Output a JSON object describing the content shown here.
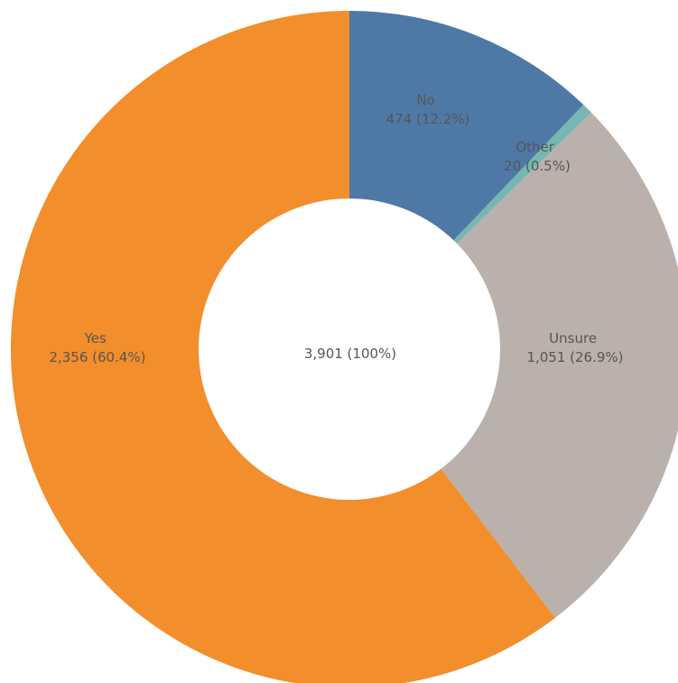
{
  "chart_data": {
    "type": "pie",
    "donut": true,
    "title": "",
    "start_angle_deg": 0,
    "direction": "clockwise",
    "slices": [
      {
        "key": "no",
        "label": "No",
        "value": 474,
        "percent": "12.2%",
        "value_text": "474 (12.2%)",
        "color": "#4E79A7"
      },
      {
        "key": "other",
        "label": "Other",
        "value": 20,
        "percent": "0.5%",
        "value_text": "20 (0.5%)",
        "color": "#76B7B2"
      },
      {
        "key": "unsure",
        "label": "Unsure",
        "value": 1051,
        "percent": "26.9%",
        "value_text": "1,051 (26.9%)",
        "color": "#BAB0AC"
      },
      {
        "key": "yes",
        "label": "Yes",
        "value": 2356,
        "percent": "60.4%",
        "value_text": "2,356 (60.4%)",
        "color": "#F28E2B"
      }
    ],
    "total": 3901,
    "center_text": "3,901 (100%)"
  }
}
